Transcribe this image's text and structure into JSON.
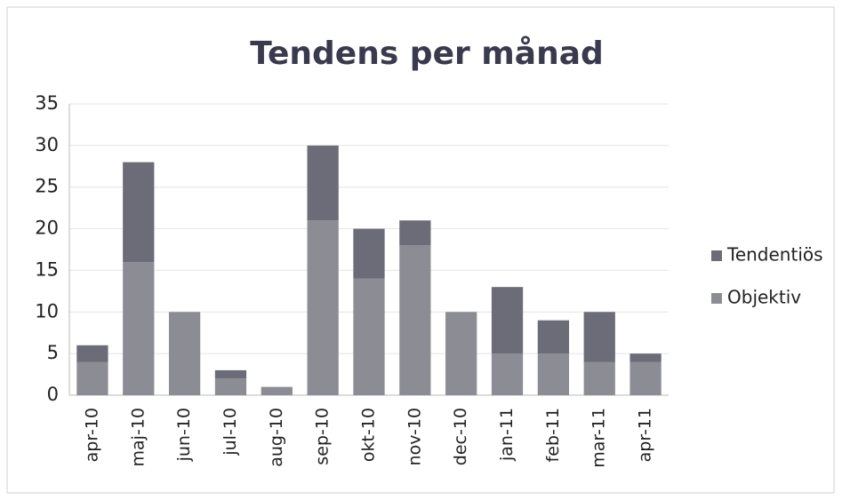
{
  "chart_data": {
    "type": "bar",
    "stacked": true,
    "title": "Tendens per månad",
    "categories": [
      "apr-10",
      "maj-10",
      "jun-10",
      "jul-10",
      "aug-10",
      "sep-10",
      "okt-10",
      "nov-10",
      "dec-10",
      "jan-11",
      "feb-11",
      "mar-11",
      "apr-11"
    ],
    "series": [
      {
        "name": "Tendentiös",
        "color": "#6c6c78",
        "values": [
          2,
          12,
          0,
          1,
          0,
          9,
          6,
          3,
          0,
          8,
          4,
          6,
          1
        ]
      },
      {
        "name": "Objektiv",
        "color": "#8c8c94",
        "values": [
          4,
          16,
          10,
          2,
          1,
          21,
          14,
          18,
          10,
          5,
          5,
          4,
          4
        ]
      }
    ],
    "ylim": [
      0,
      35
    ],
    "yticks": [
      0,
      5,
      10,
      15,
      20,
      25,
      30,
      35
    ],
    "grid": true,
    "legend": "right"
  }
}
